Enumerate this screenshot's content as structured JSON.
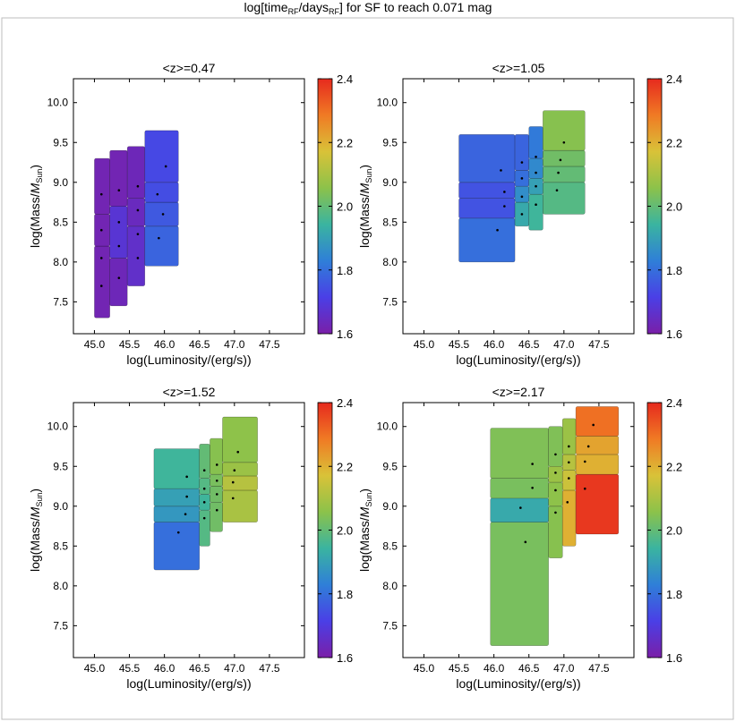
{
  "figure": {
    "title_main": "log[time",
    "title_sub1": "RF",
    "title_mid": "/days",
    "title_sub2": "RF",
    "title_tail": "] for SF to reach 0.071 mag"
  },
  "axes_text": {
    "xlabel": "log(Luminosity/(erg/s))",
    "ylabel_main": "log(Mass/",
    "ylabel_m": "M",
    "ylabel_sub": "Sun",
    "ylabel_close": ")"
  },
  "colorbar": {
    "range": [
      1.6,
      2.4
    ],
    "ticks": [
      "1.6",
      "1.8",
      "2.0",
      "2.2",
      "2.4"
    ],
    "colormap_stops": [
      "#7a1fa8",
      "#4a3fe6",
      "#2f7fd8",
      "#3ab4a0",
      "#8cc24a",
      "#d9c238",
      "#f07a24",
      "#e62a1e"
    ]
  },
  "chart_data": [
    {
      "type": "heatmap",
      "title": "<z>=0.47",
      "x_ticks": [
        "45.0",
        "45.5",
        "46.0",
        "46.5",
        "47.0",
        "47.5"
      ],
      "y_ticks": [
        "7.5",
        "8.0",
        "8.5",
        "9.0",
        "9.5",
        "10.0"
      ],
      "xlim": [
        44.7,
        48.0
      ],
      "ylim": [
        7.1,
        10.3
      ],
      "cells": [
        {
          "x0": 45.0,
          "x1": 45.22,
          "y0": 7.3,
          "y1": 8.2,
          "value": 1.62
        },
        {
          "x0": 45.0,
          "x1": 45.22,
          "y0": 8.2,
          "y1": 8.6,
          "value": 1.62
        },
        {
          "x0": 45.0,
          "x1": 45.22,
          "y0": 8.6,
          "y1": 9.3,
          "value": 1.62
        },
        {
          "x0": 45.22,
          "x1": 45.47,
          "y0": 7.45,
          "y1": 8.05,
          "value": 1.63
        },
        {
          "x0": 45.22,
          "x1": 45.47,
          "y0": 8.05,
          "y1": 8.7,
          "value": 1.68
        },
        {
          "x0": 45.22,
          "x1": 45.47,
          "y0": 8.7,
          "y1": 9.4,
          "value": 1.62
        },
        {
          "x0": 45.47,
          "x1": 45.72,
          "y0": 7.7,
          "y1": 8.45,
          "value": 1.66
        },
        {
          "x0": 45.47,
          "x1": 45.72,
          "y0": 8.45,
          "y1": 8.8,
          "value": 1.64
        },
        {
          "x0": 45.47,
          "x1": 45.72,
          "y0": 8.8,
          "y1": 9.45,
          "value": 1.63
        },
        {
          "x0": 45.72,
          "x1": 46.2,
          "y0": 7.95,
          "y1": 8.45,
          "value": 1.78
        },
        {
          "x0": 45.72,
          "x1": 46.2,
          "y0": 8.45,
          "y1": 8.75,
          "value": 1.76
        },
        {
          "x0": 45.72,
          "x1": 46.2,
          "y0": 8.75,
          "y1": 9.0,
          "value": 1.74
        },
        {
          "x0": 45.72,
          "x1": 46.2,
          "y0": 9.0,
          "y1": 9.65,
          "value": 1.73
        }
      ],
      "points": [
        {
          "x": 45.1,
          "y": 7.7
        },
        {
          "x": 45.1,
          "y": 8.05
        },
        {
          "x": 45.1,
          "y": 8.4
        },
        {
          "x": 45.1,
          "y": 8.85
        },
        {
          "x": 45.35,
          "y": 7.8
        },
        {
          "x": 45.35,
          "y": 8.2
        },
        {
          "x": 45.35,
          "y": 8.5
        },
        {
          "x": 45.35,
          "y": 8.9
        },
        {
          "x": 45.62,
          "y": 8.05
        },
        {
          "x": 45.62,
          "y": 8.35
        },
        {
          "x": 45.62,
          "y": 8.65
        },
        {
          "x": 45.62,
          "y": 8.95
        },
        {
          "x": 45.92,
          "y": 8.3
        },
        {
          "x": 45.98,
          "y": 8.6
        },
        {
          "x": 45.9,
          "y": 8.85
        },
        {
          "x": 46.02,
          "y": 9.2
        }
      ]
    },
    {
      "type": "heatmap",
      "title": "<z>=1.05",
      "x_ticks": [
        "45.0",
        "45.5",
        "46.0",
        "46.5",
        "47.0",
        "47.5"
      ],
      "y_ticks": [
        "7.5",
        "8.0",
        "8.5",
        "9.0",
        "9.5",
        "10.0"
      ],
      "xlim": [
        44.7,
        48.0
      ],
      "ylim": [
        7.1,
        10.3
      ],
      "cells": [
        {
          "x0": 45.5,
          "x1": 46.3,
          "y0": 8.0,
          "y1": 8.55,
          "value": 1.8
        },
        {
          "x0": 45.5,
          "x1": 46.3,
          "y0": 8.55,
          "y1": 8.8,
          "value": 1.75
        },
        {
          "x0": 45.5,
          "x1": 46.3,
          "y0": 8.8,
          "y1": 9.0,
          "value": 1.75
        },
        {
          "x0": 45.5,
          "x1": 46.3,
          "y0": 9.0,
          "y1": 9.6,
          "value": 1.78
        },
        {
          "x0": 46.3,
          "x1": 46.5,
          "y0": 8.45,
          "y1": 8.75,
          "value": 1.92
        },
        {
          "x0": 46.3,
          "x1": 46.5,
          "y0": 8.75,
          "y1": 8.95,
          "value": 1.86
        },
        {
          "x0": 46.3,
          "x1": 46.5,
          "y0": 8.95,
          "y1": 9.15,
          "value": 1.8
        },
        {
          "x0": 46.3,
          "x1": 46.5,
          "y0": 9.15,
          "y1": 9.6,
          "value": 1.78
        },
        {
          "x0": 46.5,
          "x1": 46.7,
          "y0": 8.4,
          "y1": 8.85,
          "value": 1.95
        },
        {
          "x0": 46.5,
          "x1": 46.7,
          "y0": 8.85,
          "y1": 9.05,
          "value": 1.9
        },
        {
          "x0": 46.5,
          "x1": 46.7,
          "y0": 9.05,
          "y1": 9.3,
          "value": 1.85
        },
        {
          "x0": 46.5,
          "x1": 46.7,
          "y0": 9.3,
          "y1": 9.7,
          "value": 1.82
        },
        {
          "x0": 46.7,
          "x1": 47.3,
          "y0": 8.6,
          "y1": 9.0,
          "value": 1.98
        },
        {
          "x0": 46.7,
          "x1": 47.3,
          "y0": 9.0,
          "y1": 9.2,
          "value": 2.0
        },
        {
          "x0": 46.7,
          "x1": 47.3,
          "y0": 9.2,
          "y1": 9.4,
          "value": 2.02
        },
        {
          "x0": 46.7,
          "x1": 47.3,
          "y0": 9.4,
          "y1": 9.9,
          "value": 2.05
        }
      ],
      "points": [
        {
          "x": 46.05,
          "y": 8.4
        },
        {
          "x": 46.15,
          "y": 8.7
        },
        {
          "x": 46.15,
          "y": 8.88
        },
        {
          "x": 46.1,
          "y": 9.15
        },
        {
          "x": 46.4,
          "y": 8.6
        },
        {
          "x": 46.4,
          "y": 8.82
        },
        {
          "x": 46.4,
          "y": 9.05
        },
        {
          "x": 46.4,
          "y": 9.25
        },
        {
          "x": 46.6,
          "y": 8.72
        },
        {
          "x": 46.6,
          "y": 8.95
        },
        {
          "x": 46.6,
          "y": 9.12
        },
        {
          "x": 46.6,
          "y": 9.32
        },
        {
          "x": 46.9,
          "y": 8.9
        },
        {
          "x": 46.92,
          "y": 9.12
        },
        {
          "x": 46.95,
          "y": 9.28
        },
        {
          "x": 47.0,
          "y": 9.5
        }
      ]
    },
    {
      "type": "heatmap",
      "title": "<z>=1.52",
      "x_ticks": [
        "45.0",
        "45.5",
        "46.0",
        "46.5",
        "47.0",
        "47.5"
      ],
      "y_ticks": [
        "7.5",
        "8.0",
        "8.5",
        "9.0",
        "9.5",
        "10.0"
      ],
      "xlim": [
        44.7,
        48.0
      ],
      "ylim": [
        7.1,
        10.3
      ],
      "cells": [
        {
          "x0": 45.85,
          "x1": 46.5,
          "y0": 8.2,
          "y1": 8.8,
          "value": 1.8
        },
        {
          "x0": 45.85,
          "x1": 46.5,
          "y0": 8.8,
          "y1": 9.0,
          "value": 1.88
        },
        {
          "x0": 45.85,
          "x1": 46.5,
          "y0": 9.0,
          "y1": 9.22,
          "value": 1.9
        },
        {
          "x0": 45.85,
          "x1": 46.5,
          "y0": 9.22,
          "y1": 9.72,
          "value": 1.95
        },
        {
          "x0": 46.5,
          "x1": 46.65,
          "y0": 8.5,
          "y1": 8.95,
          "value": 1.98
        },
        {
          "x0": 46.5,
          "x1": 46.65,
          "y0": 8.95,
          "y1": 9.15,
          "value": 1.95
        },
        {
          "x0": 46.5,
          "x1": 46.65,
          "y0": 9.15,
          "y1": 9.35,
          "value": 1.98
        },
        {
          "x0": 46.5,
          "x1": 46.65,
          "y0": 9.35,
          "y1": 9.78,
          "value": 2.0
        },
        {
          "x0": 46.65,
          "x1": 46.83,
          "y0": 8.68,
          "y1": 9.05,
          "value": 2.02
        },
        {
          "x0": 46.65,
          "x1": 46.83,
          "y0": 9.05,
          "y1": 9.25,
          "value": 2.02
        },
        {
          "x0": 46.65,
          "x1": 46.83,
          "y0": 9.25,
          "y1": 9.4,
          "value": 2.03
        },
        {
          "x0": 46.65,
          "x1": 46.83,
          "y0": 9.4,
          "y1": 9.85,
          "value": 2.05
        },
        {
          "x0": 46.83,
          "x1": 47.33,
          "y0": 8.8,
          "y1": 9.2,
          "value": 2.1
        },
        {
          "x0": 46.83,
          "x1": 47.33,
          "y0": 9.2,
          "y1": 9.38,
          "value": 2.12
        },
        {
          "x0": 46.83,
          "x1": 47.33,
          "y0": 9.38,
          "y1": 9.55,
          "value": 2.08
        },
        {
          "x0": 46.83,
          "x1": 47.33,
          "y0": 9.55,
          "y1": 10.12,
          "value": 2.06
        }
      ],
      "points": [
        {
          "x": 46.2,
          "y": 8.67
        },
        {
          "x": 46.3,
          "y": 8.9
        },
        {
          "x": 46.32,
          "y": 9.12
        },
        {
          "x": 46.32,
          "y": 9.37
        },
        {
          "x": 46.57,
          "y": 8.85
        },
        {
          "x": 46.57,
          "y": 9.05
        },
        {
          "x": 46.57,
          "y": 9.22
        },
        {
          "x": 46.57,
          "y": 9.45
        },
        {
          "x": 46.75,
          "y": 8.95
        },
        {
          "x": 46.75,
          "y": 9.15
        },
        {
          "x": 46.75,
          "y": 9.32
        },
        {
          "x": 46.75,
          "y": 9.52
        },
        {
          "x": 46.98,
          "y": 9.1
        },
        {
          "x": 46.98,
          "y": 9.3
        },
        {
          "x": 47.0,
          "y": 9.45
        },
        {
          "x": 47.05,
          "y": 9.68
        }
      ]
    },
    {
      "type": "heatmap",
      "title": "<z>=2.17",
      "x_ticks": [
        "45.0",
        "45.5",
        "46.0",
        "46.5",
        "47.0",
        "47.5"
      ],
      "y_ticks": [
        "7.5",
        "8.0",
        "8.5",
        "9.0",
        "9.5",
        "10.0"
      ],
      "xlim": [
        44.7,
        48.0
      ],
      "ylim": [
        7.1,
        10.3
      ],
      "cells": [
        {
          "x0": 45.95,
          "x1": 46.78,
          "y0": 7.25,
          "y1": 8.8,
          "value": 2.03
        },
        {
          "x0": 45.95,
          "x1": 46.78,
          "y0": 8.8,
          "y1": 9.1,
          "value": 1.92
        },
        {
          "x0": 45.95,
          "x1": 46.78,
          "y0": 9.1,
          "y1": 9.35,
          "value": 2.03
        },
        {
          "x0": 45.95,
          "x1": 46.78,
          "y0": 9.35,
          "y1": 9.98,
          "value": 2.04
        },
        {
          "x0": 46.78,
          "x1": 46.98,
          "y0": 8.35,
          "y1": 9.0,
          "value": 2.05
        },
        {
          "x0": 46.78,
          "x1": 46.98,
          "y0": 9.0,
          "y1": 9.3,
          "value": 2.06
        },
        {
          "x0": 46.78,
          "x1": 46.98,
          "y0": 9.3,
          "y1": 9.5,
          "value": 2.08
        },
        {
          "x0": 46.78,
          "x1": 46.98,
          "y0": 9.5,
          "y1": 10.0,
          "value": 2.04
        },
        {
          "x0": 46.98,
          "x1": 47.17,
          "y0": 8.5,
          "y1": 9.2,
          "value": 2.2
        },
        {
          "x0": 46.98,
          "x1": 47.17,
          "y0": 9.2,
          "y1": 9.45,
          "value": 2.15
        },
        {
          "x0": 46.98,
          "x1": 47.17,
          "y0": 9.45,
          "y1": 9.65,
          "value": 2.12
        },
        {
          "x0": 46.98,
          "x1": 47.17,
          "y0": 9.65,
          "y1": 10.1,
          "value": 2.08
        },
        {
          "x0": 47.17,
          "x1": 47.78,
          "y0": 8.65,
          "y1": 9.4,
          "value": 2.38
        },
        {
          "x0": 47.17,
          "x1": 47.78,
          "y0": 9.4,
          "y1": 9.65,
          "value": 2.2
        },
        {
          "x0": 47.17,
          "x1": 47.78,
          "y0": 9.65,
          "y1": 9.88,
          "value": 2.22
        },
        {
          "x0": 47.17,
          "x1": 47.78,
          "y0": 9.88,
          "y1": 10.25,
          "value": 2.3
        }
      ],
      "points": [
        {
          "x": 46.45,
          "y": 8.55
        },
        {
          "x": 46.38,
          "y": 8.98
        },
        {
          "x": 46.55,
          "y": 9.23
        },
        {
          "x": 46.55,
          "y": 9.53
        },
        {
          "x": 46.88,
          "y": 8.92
        },
        {
          "x": 46.88,
          "y": 9.2
        },
        {
          "x": 46.88,
          "y": 9.42
        },
        {
          "x": 46.88,
          "y": 9.65
        },
        {
          "x": 47.05,
          "y": 9.05
        },
        {
          "x": 47.07,
          "y": 9.35
        },
        {
          "x": 47.07,
          "y": 9.55
        },
        {
          "x": 47.07,
          "y": 9.75
        },
        {
          "x": 47.3,
          "y": 9.22
        },
        {
          "x": 47.3,
          "y": 9.56
        },
        {
          "x": 47.35,
          "y": 9.75
        },
        {
          "x": 47.42,
          "y": 10.02
        }
      ]
    }
  ]
}
